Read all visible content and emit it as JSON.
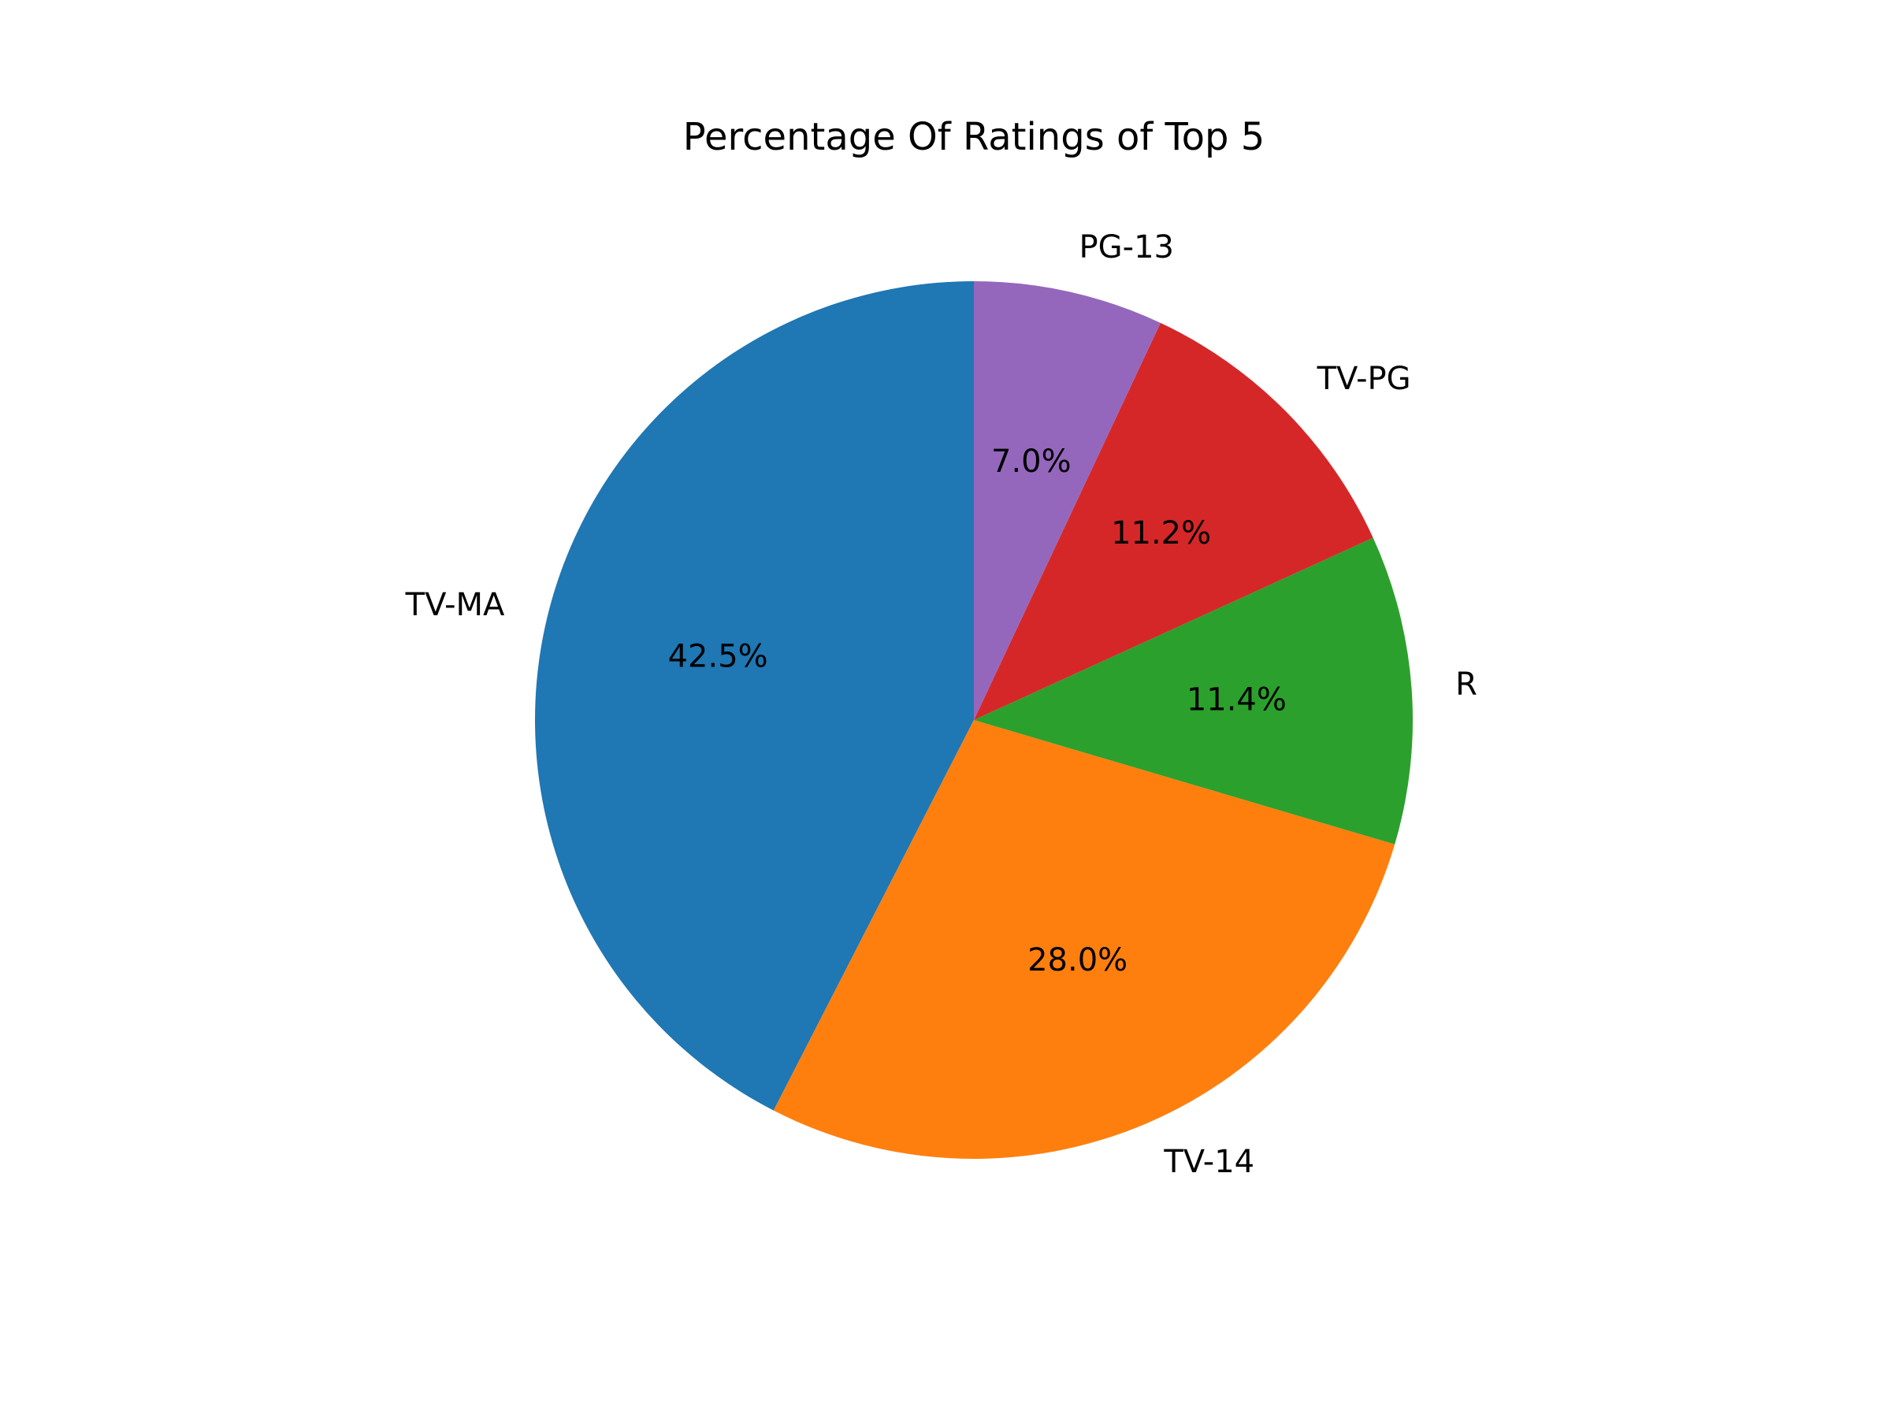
{
  "chart_data": {
    "type": "pie",
    "title": "Percentage Of Ratings of Top 5",
    "categories": [
      "TV-MA",
      "TV-14",
      "R",
      "TV-PG",
      "PG-13"
    ],
    "values": [
      42.5,
      28.0,
      11.4,
      11.2,
      7.0
    ],
    "pct_labels": [
      "42.5%",
      "28.0%",
      "11.4%",
      "11.2%",
      "7.0%"
    ],
    "colors": [
      "#1f77b4",
      "#ff7f0e",
      "#2ca02c",
      "#d62728",
      "#9467bd"
    ],
    "start_angle_deg": 90,
    "direction": "counterclockwise"
  }
}
